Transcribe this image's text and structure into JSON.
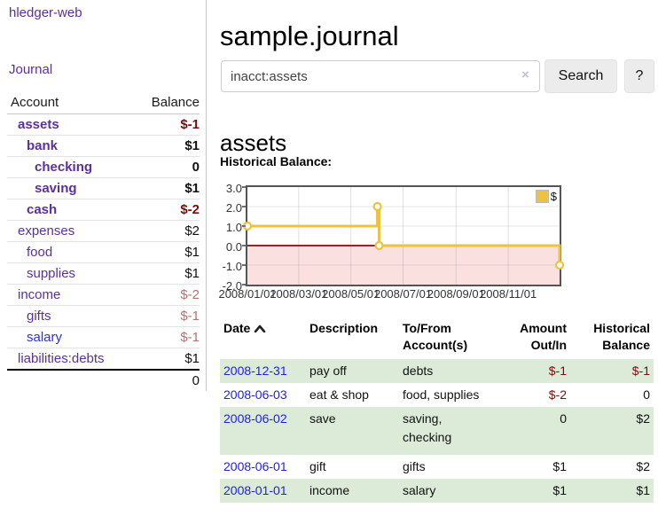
{
  "app": {
    "name": "hledger-web"
  },
  "colors": {
    "purple_link": "#5b309d",
    "blue_link": "#2236d9",
    "negative": "#7b0b0b",
    "negative_soft": "#b8716f",
    "stripe_green": "#dcebd8"
  },
  "sidebar": {
    "journal_link": "Journal",
    "accounts_table": {
      "headers": [
        "Account",
        "Balance"
      ],
      "rows": [
        {
          "account": "assets",
          "balance": "$-1",
          "level": 1,
          "emph": true,
          "balance_style": "negative"
        },
        {
          "account": "bank",
          "balance": "$1",
          "level": 2,
          "emph": true,
          "balance_style": "normal"
        },
        {
          "account": "checking",
          "balance": "0",
          "level": 3,
          "emph": true,
          "balance_style": "normal"
        },
        {
          "account": "saving",
          "balance": "$1",
          "level": 3,
          "emph": true,
          "balance_style": "normal"
        },
        {
          "account": "cash",
          "balance": "$-2",
          "level": 2,
          "emph": true,
          "balance_style": "negative"
        },
        {
          "account": "expenses",
          "balance": "$2",
          "level": 1,
          "emph": false,
          "balance_style": "normal"
        },
        {
          "account": "food",
          "balance": "$1",
          "level": 2,
          "emph": false,
          "balance_style": "normal"
        },
        {
          "account": "supplies",
          "balance": "$1",
          "level": 2,
          "emph": false,
          "balance_style": "normal"
        },
        {
          "account": "income",
          "balance": "$-2",
          "level": 1,
          "emph": false,
          "balance_style": "negative-soft"
        },
        {
          "account": "gifts",
          "balance": "$-1",
          "level": 2,
          "emph": false,
          "balance_style": "negative-soft"
        },
        {
          "account": "salary",
          "balance": "$-1",
          "level": 2,
          "emph": false,
          "balance_style": "negative-soft",
          "link_style": "blue"
        },
        {
          "account": "liabilities:debts",
          "balance": "$1",
          "level": 1,
          "emph": false,
          "balance_style": "normal"
        }
      ],
      "total": "0"
    }
  },
  "main": {
    "title": "sample.journal",
    "search": {
      "value": "inacct:assets",
      "clear_icon": "×",
      "search_button": "Search",
      "help_button": "?"
    },
    "account_heading": "assets",
    "section_label": "Historical Balance:"
  },
  "chart_data": {
    "type": "line",
    "title": "Historical Balance",
    "step": true,
    "x_domain": [
      "2008-01-01",
      "2008-12-31"
    ],
    "ylim": [
      -2,
      3
    ],
    "series": [
      {
        "name": "$",
        "color": "#edc240",
        "points": [
          {
            "date": "2008-01-01",
            "value": 1
          },
          {
            "date": "2008-06-01",
            "value": 2
          },
          {
            "date": "2008-06-03",
            "value": 0
          },
          {
            "date": "2008-12-31",
            "value": -1
          }
        ]
      }
    ],
    "x_ticks": [
      {
        "label": "2008/01/01",
        "date": "2008-01-01"
      },
      {
        "label": "2008/03/01",
        "date": "2008-03-01"
      },
      {
        "label": "2008/05/01",
        "date": "2008-05-01"
      },
      {
        "label": "2008/07/01",
        "date": "2008-07-01"
      },
      {
        "label": "2008/09/01",
        "date": "2008-09-01"
      },
      {
        "label": "2008/11/01",
        "date": "2008-11-01"
      }
    ],
    "y_ticks": [
      {
        "label": "3.0",
        "value": 3
      },
      {
        "label": "2.0",
        "value": 2
      },
      {
        "label": "1.0",
        "value": 1
      },
      {
        "label": "0.0",
        "value": 0
      },
      {
        "label": "-1.0",
        "value": -1
      },
      {
        "label": "-2.0",
        "value": -2
      }
    ],
    "legend": {
      "label": "$",
      "position": "top-right"
    },
    "colors": {
      "line": "#edc240",
      "marker_fill": "#ffffff",
      "negative_region": "#fbe0e0",
      "zero_line": "#990000",
      "grid": "#e4e4e4",
      "border": "#545454"
    }
  },
  "register": {
    "headers": [
      {
        "label": "Date",
        "sort": "asc"
      },
      {
        "label": "Description"
      },
      {
        "label": "To/From Account(s)"
      },
      {
        "label": "Amount Out/In",
        "align": "right"
      },
      {
        "label": "Historical Balance",
        "align": "right"
      }
    ],
    "rows": [
      {
        "date": "2008-12-31",
        "description": "pay off",
        "accounts": [
          "debts"
        ],
        "amount": "$-1",
        "amount_style": "negative",
        "balance": "$-1",
        "balance_style": "negative",
        "striped": true
      },
      {
        "date": "2008-06-03",
        "description": "eat & shop",
        "accounts": [
          "food, supplies"
        ],
        "amount": "$-2",
        "amount_style": "negative",
        "balance": "0",
        "balance_style": "normal",
        "striped": false
      },
      {
        "date": "2008-06-02",
        "description": "save",
        "accounts": [
          "saving,",
          "checking"
        ],
        "amount": "0",
        "amount_style": "normal",
        "balance": "$2",
        "balance_style": "normal",
        "striped": true
      },
      {
        "date": "2008-06-01",
        "description": "gift",
        "accounts": [
          "gifts"
        ],
        "amount": "$1",
        "amount_style": "normal",
        "balance": "$2",
        "balance_style": "normal",
        "striped": false
      },
      {
        "date": "2008-01-01",
        "description": "income",
        "accounts": [
          "salary"
        ],
        "amount": "$1",
        "amount_style": "normal",
        "balance": "$1",
        "balance_style": "normal",
        "striped": true
      }
    ]
  }
}
